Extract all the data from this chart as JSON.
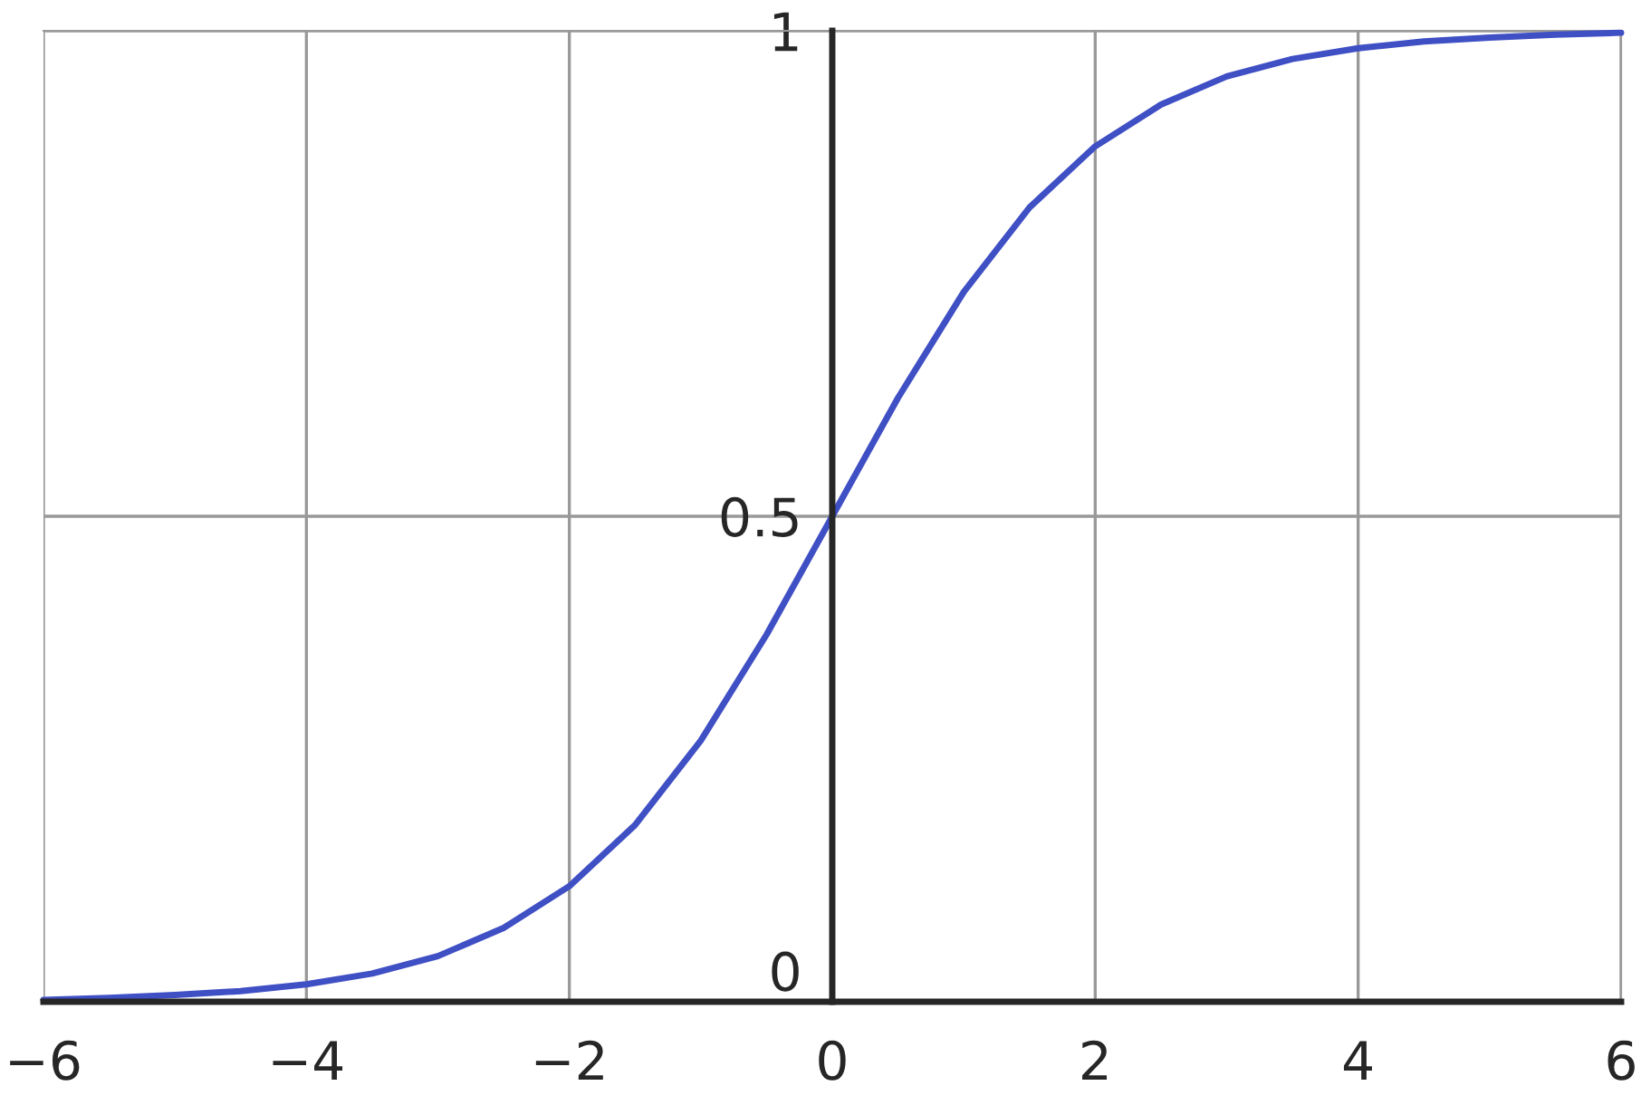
{
  "chart_data": {
    "type": "line",
    "x": [
      -6,
      -5.5,
      -5,
      -4.5,
      -4,
      -3.5,
      -3,
      -2.5,
      -2,
      -1.5,
      -1,
      -0.5,
      0,
      0.5,
      1,
      1.5,
      2,
      2.5,
      3,
      3.5,
      4,
      4.5,
      5,
      5.5,
      6
    ],
    "series": [
      {
        "color": "#3f4fc4",
        "values": [
          0.002,
          0.004,
          0.007,
          0.011,
          0.018,
          0.029,
          0.047,
          0.076,
          0.119,
          0.182,
          0.269,
          0.378,
          0.5,
          0.622,
          0.731,
          0.818,
          0.881,
          0.924,
          0.953,
          0.971,
          0.982,
          0.989,
          0.993,
          0.996,
          0.998
        ]
      }
    ],
    "xlim": [
      -6,
      6
    ],
    "ylim": [
      0,
      1
    ],
    "xticks": [
      {
        "value": -6,
        "label": "−6"
      },
      {
        "value": -4,
        "label": "−4"
      },
      {
        "value": -2,
        "label": "−2"
      },
      0,
      2,
      4,
      6
    ],
    "yticks": [
      0,
      0.5,
      1
    ],
    "grid": true,
    "marker": "none",
    "line_style": "solid"
  }
}
